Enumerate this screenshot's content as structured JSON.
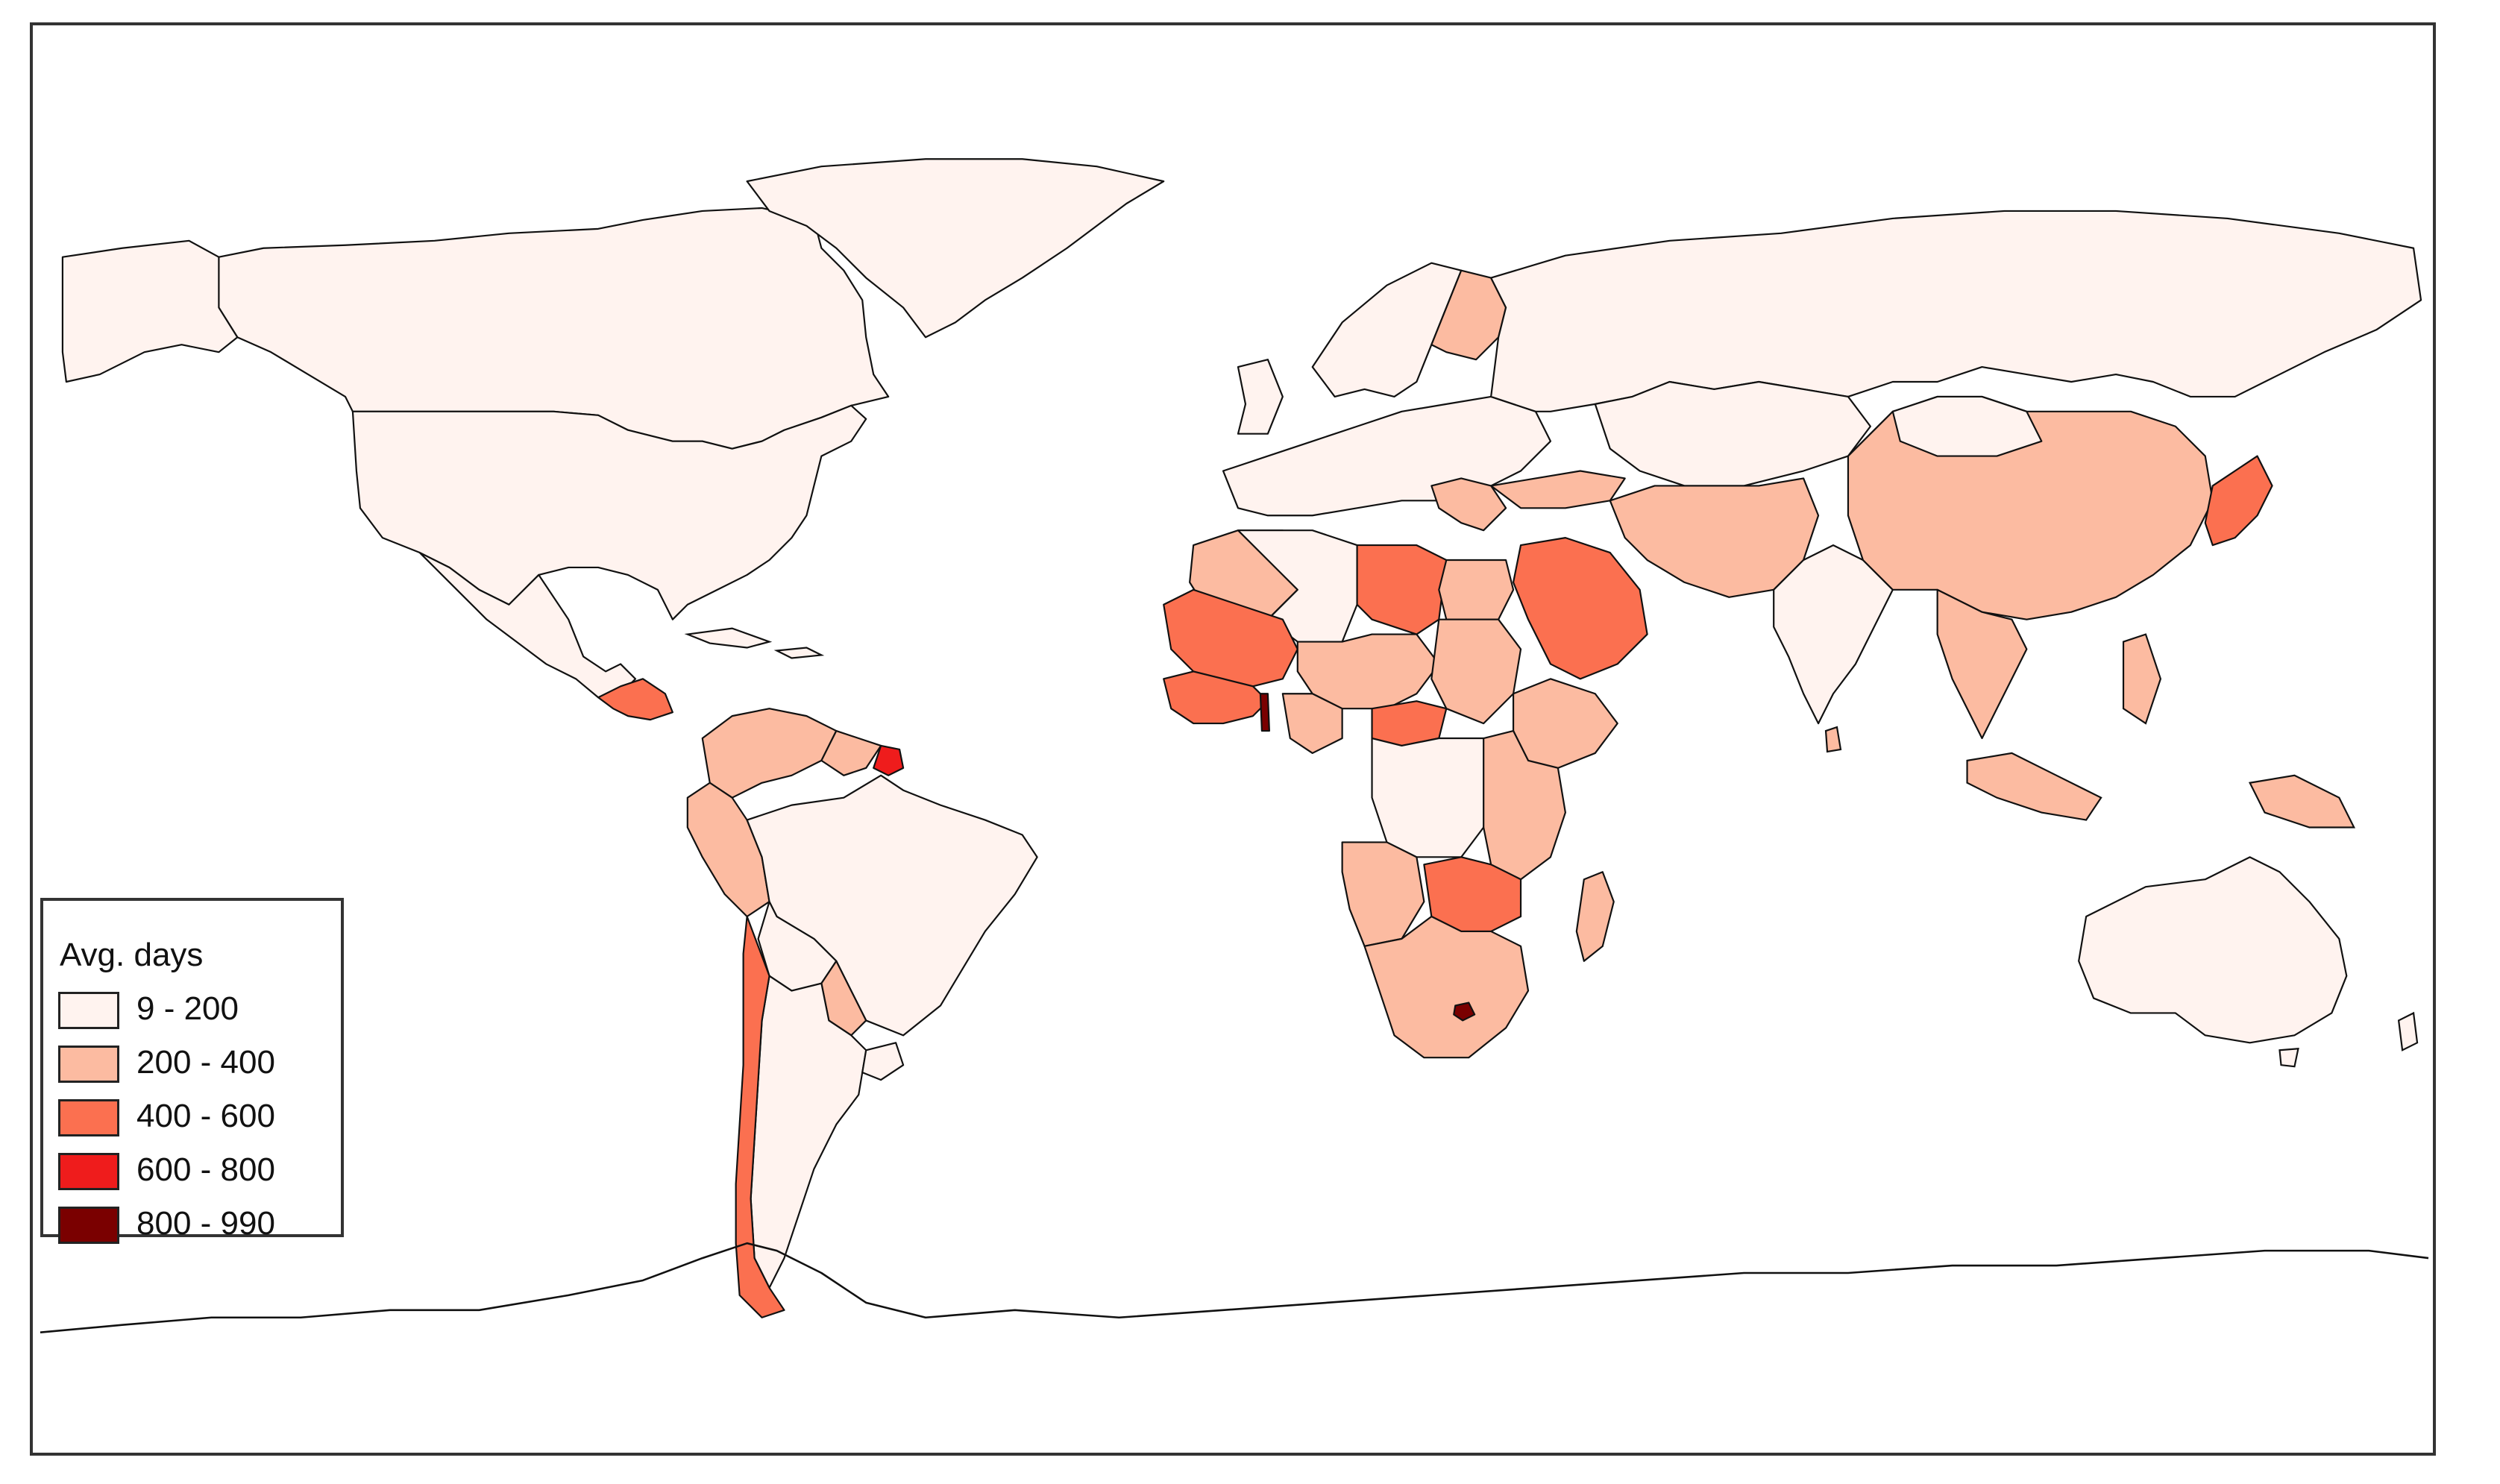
{
  "map": {
    "projection": "equirectangular-like world map",
    "colors": {
      "ocean": "#ffffff",
      "bin_9_200": "#fff3ef",
      "bin_200_400": "#fcbba1",
      "bin_400_600": "#fb7050",
      "bin_600_800": "#ef1c1c",
      "bin_800_990": "#7a0000",
      "border": "#111111"
    }
  },
  "legend": {
    "title": "Avg. days",
    "items": [
      {
        "label": "9 - 200",
        "color": "#fff3ef"
      },
      {
        "label": "200 - 400",
        "color": "#fcbba1"
      },
      {
        "label": "400 - 600",
        "color": "#fb7050"
      },
      {
        "label": "600 - 800",
        "color": "#ef1c1c"
      },
      {
        "label": "800 - 990",
        "color": "#7a0000"
      }
    ]
  }
}
